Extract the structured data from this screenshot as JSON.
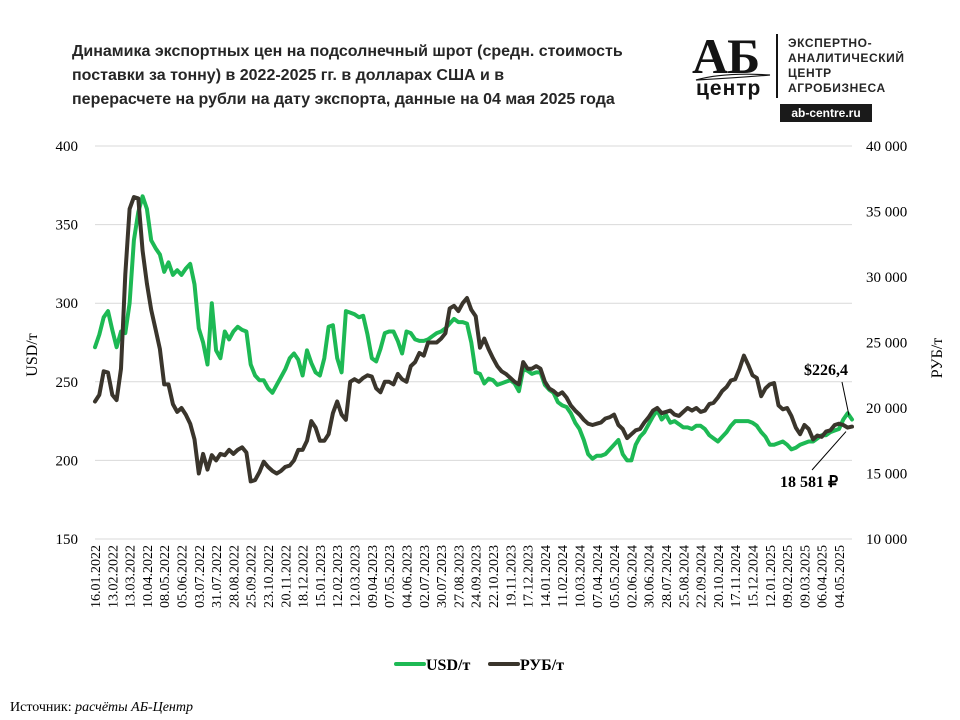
{
  "chart_data": {
    "type": "line",
    "title": "Динамика экспортных цен на подсолнечный шрот (средн. стоимость поставки за тонну) в 2022-2025 гг. в долларах США и в перерасчете на рубли на дату экспорта, данные на 04 мая 2025 года",
    "title_lines": [
      "Динамика экспортных цен на подсолнечный шрот (средн. стоимость",
      "поставки за тонну) в 2022-2025 гг. в долларах США и в",
      "перерасчете на рубли на дату экспорта, данные на 04 мая 2025 года"
    ],
    "ylabel_left": "USD/т",
    "ylabel_right": "РУБ/т",
    "ylim_left": [
      150,
      400
    ],
    "ylim_right": [
      10000,
      40000
    ],
    "yticks_left": [
      "150",
      "200",
      "250",
      "300",
      "350",
      "400"
    ],
    "yticks_right": [
      "10 000",
      "15 000",
      "20 000",
      "25 000",
      "30 000",
      "35 000",
      "40 000"
    ],
    "xtick_labels": [
      "16.01.2022",
      "13.02.2022",
      "13.03.2022",
      "10.04.2022",
      "08.05.2022",
      "05.06.2022",
      "03.07.2022",
      "31.07.2022",
      "28.08.2022",
      "25.09.2022",
      "23.10.2022",
      "20.11.2022",
      "18.12.2022",
      "15.01.2023",
      "12.02.2023",
      "12.03.2023",
      "09.04.2023",
      "07.05.2023",
      "04.06.2023",
      "02.07.2023",
      "30.07.2023",
      "27.08.2023",
      "24.09.2023",
      "22.10.2023",
      "19.11.2023",
      "17.12.2023",
      "14.01.2024",
      "11.02.2024",
      "10.03.2024",
      "07.04.2024",
      "05.05.2024",
      "02.06.2024",
      "30.06.2024",
      "28.07.2024",
      "25.08.2024",
      "22.09.2024",
      "20.10.2024",
      "17.11.2024",
      "15.12.2024",
      "12.01.2025",
      "09.02.2025",
      "09.03.2025",
      "06.04.2025",
      "04.05.2025"
    ],
    "grid": true,
    "legend_position": "bottom",
    "series": [
      {
        "name": "USD/т",
        "axis": "left",
        "color": "#1db954",
        "x": [
          0,
          1,
          2,
          3,
          4,
          5,
          6,
          7,
          8,
          9,
          10,
          11,
          12,
          13,
          14,
          15,
          16,
          17,
          18,
          19,
          20,
          21,
          22,
          23,
          24,
          25,
          26,
          27,
          28,
          29,
          30,
          31,
          32,
          33,
          34,
          35,
          36,
          37,
          38,
          39,
          40,
          41,
          42,
          43,
          44,
          45,
          46,
          47,
          48,
          49,
          50,
          51,
          52,
          53,
          54,
          55,
          56,
          57,
          58,
          59,
          60,
          61,
          62,
          63,
          64,
          65,
          66,
          67,
          68,
          69,
          70,
          71,
          72,
          73,
          74,
          75,
          76,
          77,
          78,
          79,
          80,
          81,
          82,
          83,
          84,
          85,
          86,
          87,
          88,
          89,
          90,
          91,
          92,
          93,
          94,
          95,
          96,
          97,
          98,
          99,
          100,
          101,
          102,
          103,
          104,
          105,
          106,
          107,
          108,
          109,
          110,
          111,
          112,
          113,
          114,
          115,
          116,
          117,
          118,
          119,
          120,
          121,
          122,
          123,
          124,
          125,
          126,
          127,
          128,
          129,
          130,
          131,
          132,
          133,
          134,
          135,
          136,
          137,
          138,
          139,
          140,
          141,
          142,
          143,
          144,
          145,
          146,
          147,
          148,
          149,
          150,
          151,
          152,
          153,
          154,
          155,
          156,
          157,
          158,
          159,
          160,
          161,
          162,
          163,
          164,
          165,
          166,
          167,
          168,
          169,
          170,
          171,
          172,
          173,
          174,
          175
        ],
        "values": [
          272,
          280,
          291,
          295,
          283,
          272,
          282,
          281,
          300,
          340,
          358,
          368,
          360,
          340,
          335,
          331,
          320,
          326,
          318,
          321,
          318,
          322,
          325,
          312,
          284,
          275,
          261,
          300,
          270,
          265,
          282,
          277,
          282,
          285,
          283,
          282,
          261,
          254,
          251,
          251,
          246,
          243,
          248,
          253,
          258,
          265,
          268,
          264,
          254,
          270,
          262,
          256,
          254,
          265,
          285,
          286,
          265,
          256,
          295,
          294,
          293,
          291,
          292,
          280,
          265,
          263,
          271,
          281,
          282,
          282,
          276,
          268,
          282,
          281,
          277,
          276,
          276,
          277,
          279,
          281,
          282,
          284,
          287,
          290,
          288,
          288,
          287,
          275,
          256,
          255,
          249,
          252,
          251,
          248,
          249,
          250,
          251,
          249,
          244,
          258,
          257,
          255,
          256,
          256,
          248,
          245,
          243,
          237,
          235,
          234,
          230,
          224,
          220,
          213,
          204,
          201,
          203,
          203,
          204,
          207,
          210,
          213,
          204,
          200,
          200,
          210,
          215,
          218,
          223,
          228,
          232,
          226,
          229,
          224,
          225,
          223,
          221,
          221,
          220,
          222,
          222,
          220,
          216,
          214,
          212,
          215,
          218,
          222,
          225,
          225,
          225,
          225,
          224,
          222,
          218,
          215,
          210,
          210,
          211,
          212,
          210,
          207,
          208,
          210,
          211,
          212,
          212,
          214,
          216,
          216,
          218,
          219,
          220,
          226,
          230,
          226
        ]
      },
      {
        "name": "РУБ/т",
        "axis": "right",
        "color": "#3a352c",
        "x": [
          0,
          1,
          2,
          3,
          4,
          5,
          6,
          7,
          8,
          9,
          10,
          11,
          12,
          13,
          14,
          15,
          16,
          17,
          18,
          19,
          20,
          21,
          22,
          23,
          24,
          25,
          26,
          27,
          28,
          29,
          30,
          31,
          32,
          33,
          34,
          35,
          36,
          37,
          38,
          39,
          40,
          41,
          42,
          43,
          44,
          45,
          46,
          47,
          48,
          49,
          50,
          51,
          52,
          53,
          54,
          55,
          56,
          57,
          58,
          59,
          60,
          61,
          62,
          63,
          64,
          65,
          66,
          67,
          68,
          69,
          70,
          71,
          72,
          73,
          74,
          75,
          76,
          77,
          78,
          79,
          80,
          81,
          82,
          83,
          84,
          85,
          86,
          87,
          88,
          89,
          90,
          91,
          92,
          93,
          94,
          95,
          96,
          97,
          98,
          99,
          100,
          101,
          102,
          103,
          104,
          105,
          106,
          107,
          108,
          109,
          110,
          111,
          112,
          113,
          114,
          115,
          116,
          117,
          118,
          119,
          120,
          121,
          122,
          123,
          124,
          125,
          126,
          127,
          128,
          129,
          130,
          131,
          132,
          133,
          134,
          135,
          136,
          137,
          138,
          139,
          140,
          141,
          142,
          143,
          144,
          145,
          146,
          147,
          148,
          149,
          150,
          151,
          152,
          153,
          154,
          155,
          156,
          157,
          158,
          159,
          160,
          161,
          162,
          163,
          164,
          165,
          166,
          167,
          168,
          169,
          170,
          171,
          172,
          173,
          174,
          175
        ],
        "values": [
          20500,
          21000,
          22800,
          22700,
          21000,
          20600,
          23000,
          30200,
          35200,
          36100,
          36000,
          32000,
          29500,
          27500,
          26000,
          24500,
          21800,
          21800,
          20300,
          19700,
          20000,
          19500,
          18800,
          17600,
          15000,
          16500,
          15300,
          16400,
          16000,
          16500,
          16400,
          16800,
          16500,
          16800,
          17000,
          16600,
          14400,
          14500,
          15100,
          15900,
          15500,
          15200,
          15000,
          15200,
          15500,
          15600,
          16000,
          16800,
          16800,
          17500,
          19000,
          18500,
          17500,
          17500,
          18000,
          19600,
          20500,
          19500,
          19100,
          22000,
          22200,
          22000,
          22300,
          22500,
          22400,
          21500,
          21200,
          22000,
          22000,
          21800,
          22600,
          22200,
          22000,
          23200,
          23500,
          24200,
          24000,
          25000,
          25000,
          25000,
          25300,
          25700,
          27600,
          27800,
          27400,
          28000,
          28400,
          27500,
          27000,
          24600,
          25300,
          24500,
          23800,
          23200,
          22800,
          22600,
          22300,
          22000,
          21800,
          23500,
          23000,
          23000,
          23200,
          23000,
          22000,
          21500,
          21300,
          21000,
          21200,
          20800,
          20200,
          19800,
          19500,
          19100,
          18800,
          18700,
          18800,
          18900,
          19200,
          19300,
          19500,
          18700,
          18400,
          17700,
          18000,
          18300,
          18400,
          18900,
          19300,
          19800,
          20000,
          19600,
          19700,
          19800,
          19500,
          19400,
          19700,
          20000,
          19800,
          20000,
          19700,
          19800,
          20300,
          20400,
          20800,
          21300,
          21600,
          22100,
          22200,
          23000,
          24000,
          23300,
          22500,
          22300,
          20900,
          21500,
          21800,
          21900,
          20200,
          19900,
          20000,
          19400,
          18500,
          18000,
          18700,
          18400,
          17600,
          17900,
          17800,
          18200,
          18300,
          18700,
          18800,
          18700,
          18500,
          18581
        ]
      }
    ],
    "annotations": [
      {
        "text": "$226,4",
        "series": "USD/т"
      },
      {
        "text": "18 581 ₽",
        "series": "РУБ/т"
      }
    ]
  },
  "logo": {
    "letters": "АБ",
    "subtitle": "центр",
    "lines": [
      "ЭКСПЕРТНО-",
      "АНАЛИТИЧЕСКИЙ",
      "ЦЕНТР",
      "АГРОБИЗНЕСА"
    ],
    "url": "ab-centre.ru"
  },
  "source": {
    "label": "Источник:",
    "text": "расчёты АБ-Центр"
  }
}
